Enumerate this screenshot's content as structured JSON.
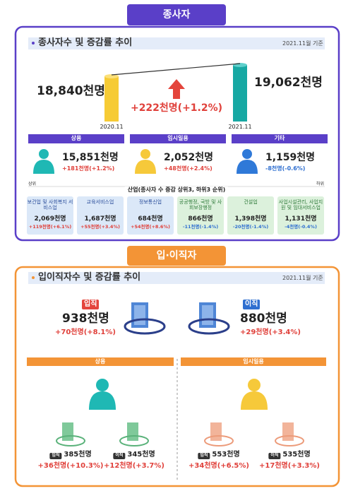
{
  "employees": {
    "tab": "종사자",
    "heading": "종사자수 및 증감률 추이",
    "date": "2021.11월 기준",
    "before": {
      "value": "18,840천명",
      "label": "2020.11"
    },
    "after": {
      "value": "19,062천명",
      "label": "2021.11"
    },
    "change": "+222천명(+1.2%)",
    "groups": [
      {
        "name": "상용",
        "value": "15,851천명",
        "change": "+181천명(+1.2%)"
      },
      {
        "name": "임시일용",
        "value": "2,052천명",
        "change": "+48천명(+2.4%)"
      },
      {
        "name": "기타",
        "value": "1,159천명",
        "change": "-8천명(-0.6%)"
      }
    ],
    "rank_high": "상위",
    "rank_low": "하위",
    "industry_title": "산업(종사자 수 증감 상위3, 하위3 순위)",
    "industries": [
      {
        "name": "보건업 및 사회복지 서비스업",
        "value": "2,069천명",
        "change": "+119천명(+6.1%)"
      },
      {
        "name": "교육서비스업",
        "value": "1,687천명",
        "change": "+55천명(+3.4%)"
      },
      {
        "name": "정보통신업",
        "value": "684천명",
        "change": "+54천명(+8.6%)"
      },
      {
        "name": "공공행정, 국방 및 사회보장행정",
        "value": "866천명",
        "change": "-11천명(-1.4%)"
      },
      {
        "name": "건설업",
        "value": "1,398천명",
        "change": "-20천명(-1.4%)"
      },
      {
        "name": "사업시설관리, 사업지원 및 임대서비스업",
        "value": "1,131천명",
        "change": "-4천명(-0.4%)"
      }
    ]
  },
  "turnover": {
    "tab": "입·이직자",
    "heading": "입이직자수 및 증감률 추이",
    "date": "2021.11월 기준",
    "hire": {
      "badge": "입직",
      "value": "938천명",
      "change": "+70천명(+8.1%)"
    },
    "separation": {
      "badge": "이직",
      "value": "880천명",
      "change": "+29천명(+3.4%)"
    },
    "groups": [
      {
        "name": "상용",
        "hire": {
          "badge": "입직",
          "value": "385천명",
          "change": "+36천명(+10.3%)"
        },
        "separation": {
          "badge": "이직",
          "value": "345천명",
          "change": "+12천명(+3.7%)"
        }
      },
      {
        "name": "임시일용",
        "hire": {
          "badge": "입직",
          "value": "553천명",
          "change": "+34천명(+6.5%)"
        },
        "separation": {
          "badge": "이직",
          "value": "535천명",
          "change": "+17천명(+3.3%)"
        }
      }
    ]
  }
}
